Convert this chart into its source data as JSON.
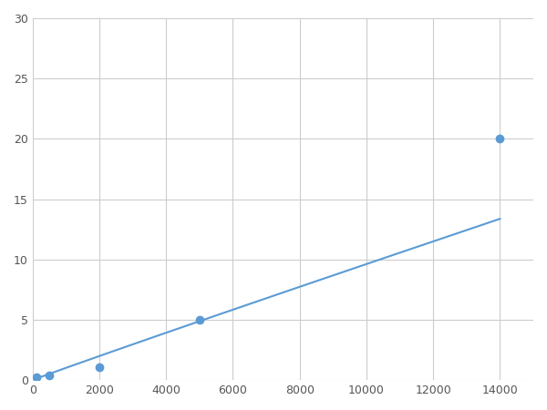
{
  "x_points": [
    125,
    500,
    2000,
    5000,
    14000
  ],
  "y_points": [
    0.2,
    0.4,
    1.1,
    5.0,
    20.0
  ],
  "line_color": "#5b9bd5",
  "marker_color": "#5b9bd5",
  "marker_size": 6,
  "line_width": 1.5,
  "xlim": [
    0,
    15000
  ],
  "ylim": [
    0,
    30
  ],
  "xticks": [
    0,
    2000,
    4000,
    6000,
    8000,
    10000,
    12000,
    14000
  ],
  "yticks": [
    0,
    5,
    10,
    15,
    20,
    25,
    30
  ],
  "grid_color": "#cccccc",
  "grid_linestyle": "-",
  "grid_linewidth": 0.8,
  "background_color": "#ffffff",
  "figsize": [
    6.0,
    4.5
  ],
  "dpi": 100
}
